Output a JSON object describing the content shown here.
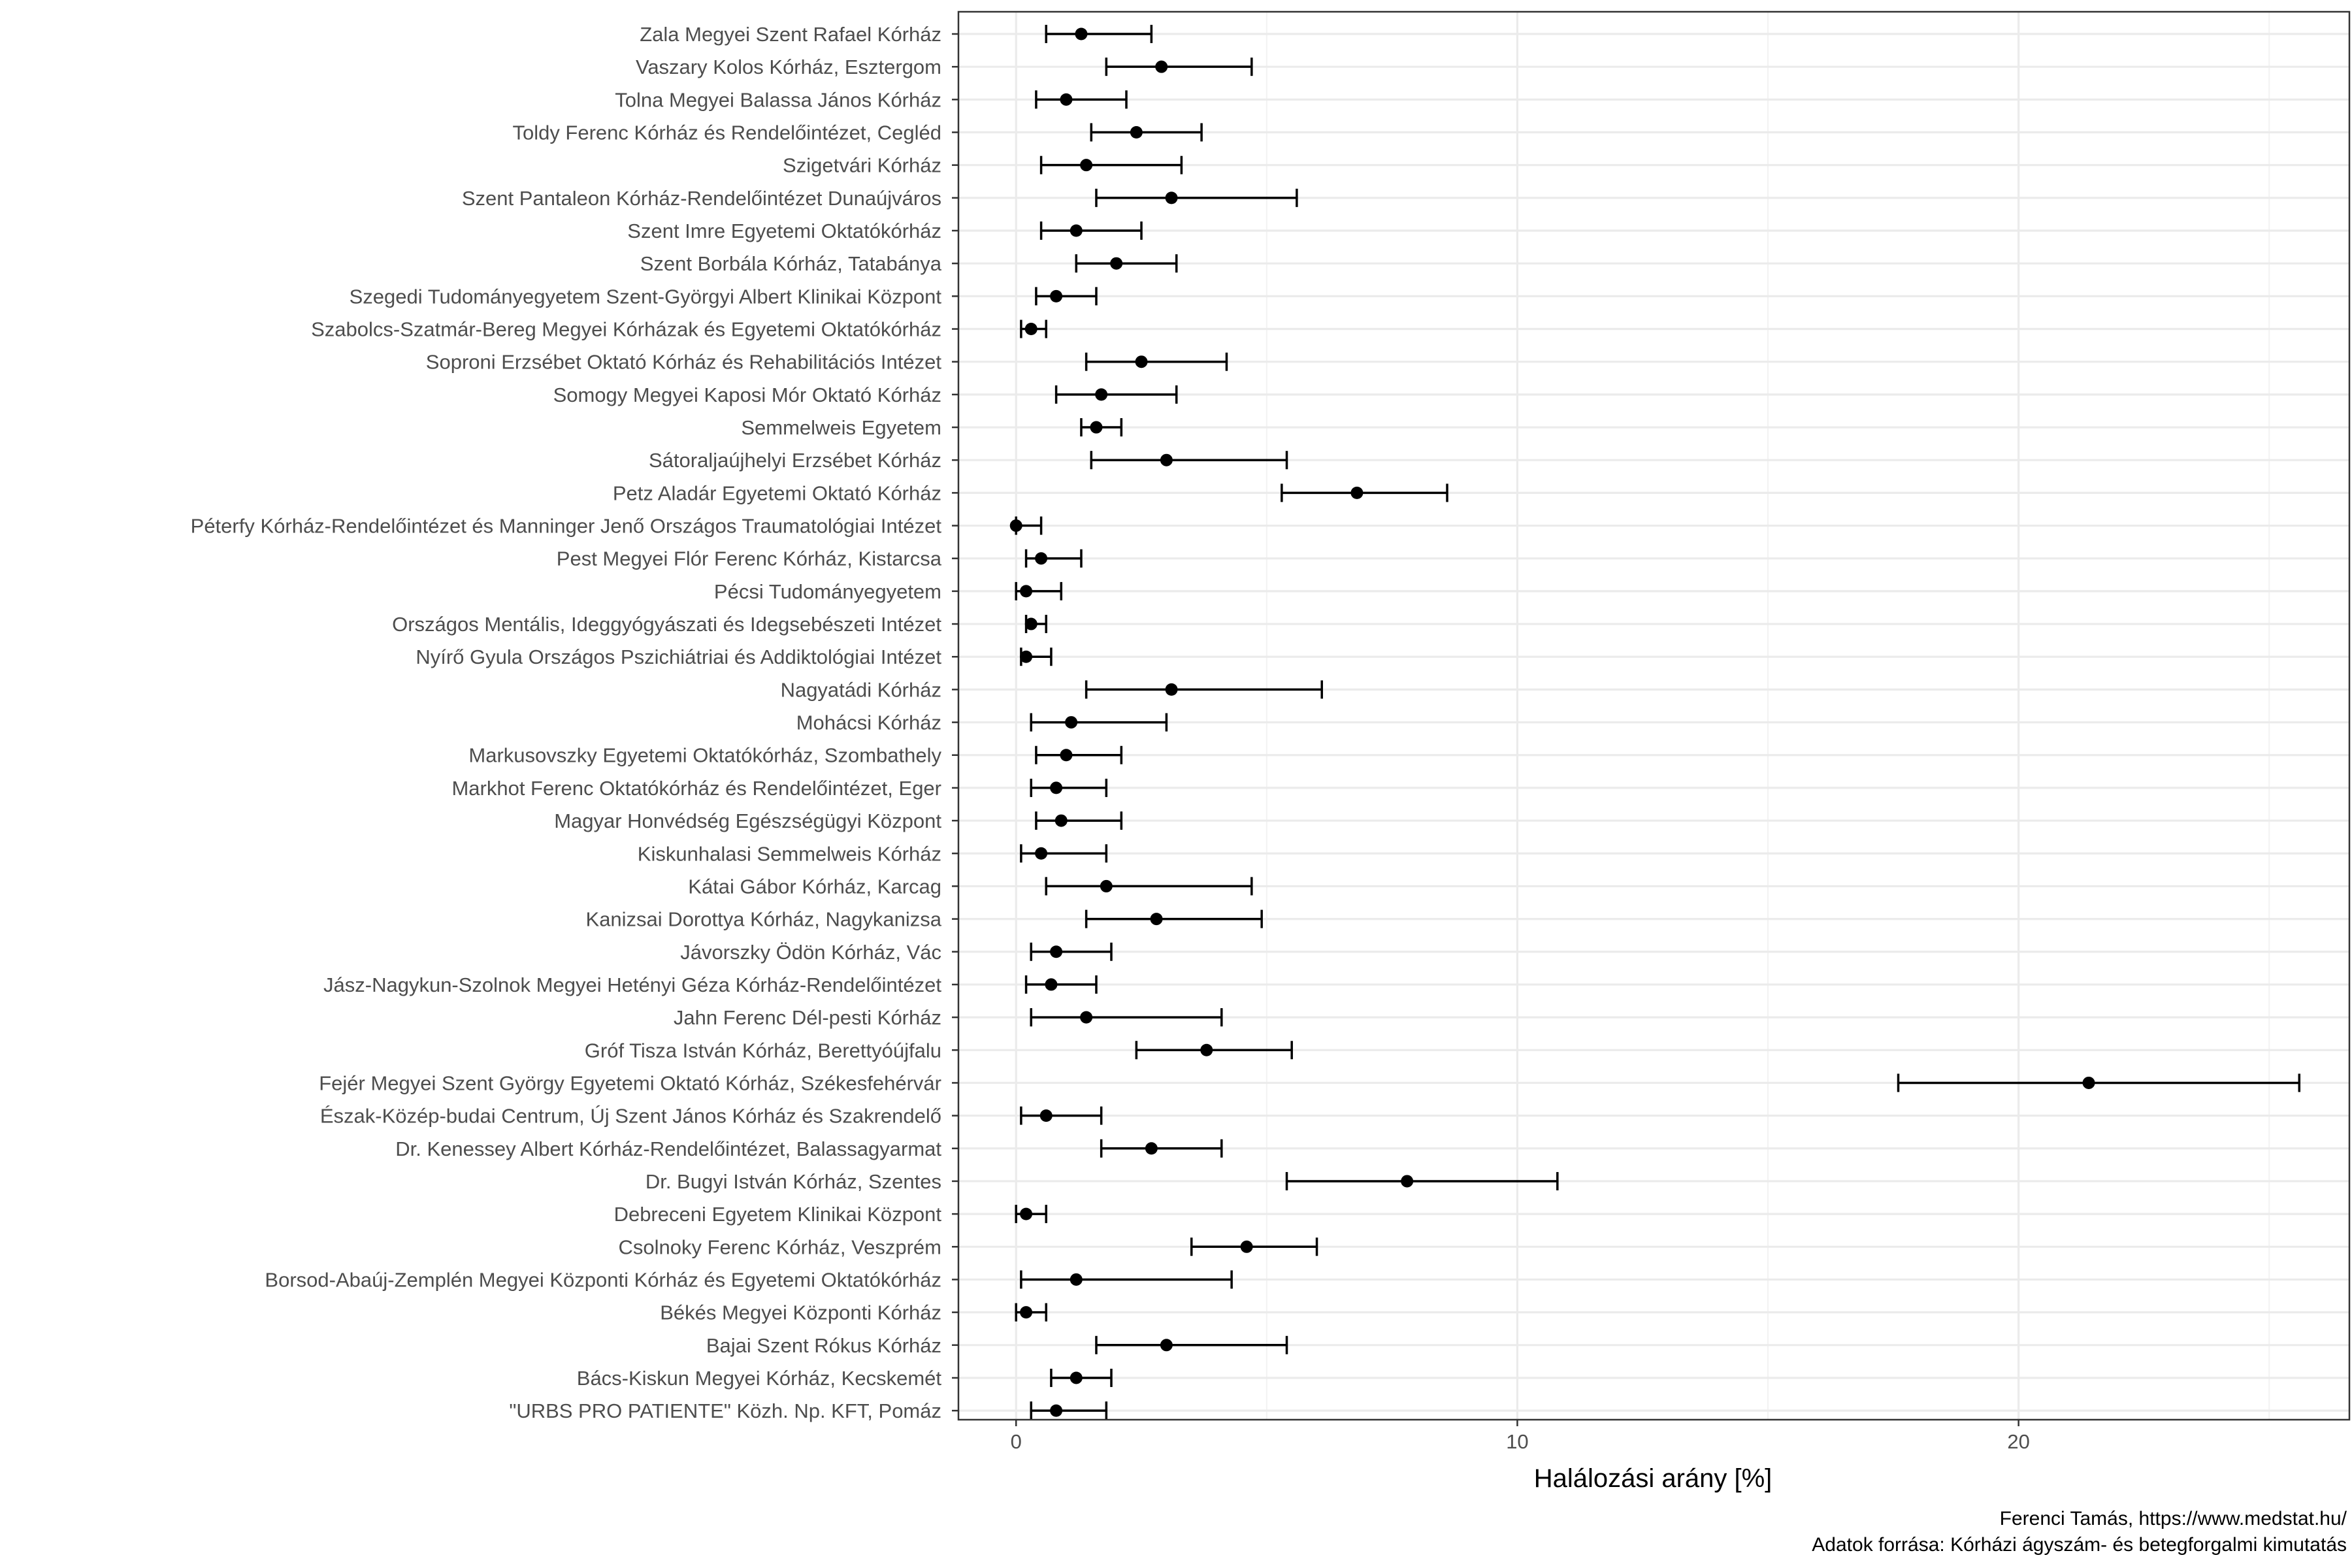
{
  "chart_data": {
    "type": "scatter",
    "title": "",
    "xlabel": "Halálozási arány [%]",
    "ylabel": "",
    "xlim": [
      -1.15,
      26.6
    ],
    "xticks": [
      0,
      10,
      20
    ],
    "x_tick_labels": [
      "0",
      "10",
      "20"
    ],
    "grid": true,
    "caption_lines": [
      "Ferenci Tamás, https://www.medstat.hu/",
      "Adatok forrása: Kórházi ágyszám- és betegforgalmi kimutatás"
    ],
    "categories": [
      "Zala Megyei Szent Rafael Kórház",
      "Vaszary Kolos Kórház, Esztergom",
      "Tolna Megyei Balassa János Kórház",
      "Toldy Ferenc Kórház és Rendelőintézet, Cegléd",
      "Szigetvári Kórház",
      "Szent Pantaleon Kórház-Rendelőintézet Dunaújváros",
      "Szent Imre Egyetemi Oktatókórház",
      "Szent Borbála Kórház, Tatabánya",
      "Szegedi Tudományegyetem Szent-Györgyi Albert Klinikai Központ",
      "Szabolcs-Szatmár-Bereg Megyei Kórházak és Egyetemi Oktatókórház",
      "Soproni Erzsébet Oktató Kórház és Rehabilitációs Intézet",
      "Somogy Megyei Kaposi Mór Oktató Kórház",
      "Semmelweis Egyetem",
      "Sátoraljaújhelyi Erzsébet Kórház",
      "Petz Aladár Egyetemi Oktató Kórház",
      "Péterfy Kórház-Rendelőintézet és Manninger Jenő Országos Traumatológiai Intézet",
      "Pest Megyei Flór Ferenc Kórház, Kistarcsa",
      "Pécsi Tudományegyetem",
      "Országos Mentális, Ideggyógyászati és Idegsebészeti Intézet",
      "Nyírő Gyula Országos Pszichiátriai és Addiktológiai Intézet",
      "Nagyatádi Kórház",
      "Mohácsi Kórház",
      "Markusovszky Egyetemi Oktatókórház, Szombathely",
      "Markhot Ferenc Oktatókórház és Rendelőintézet, Eger",
      "Magyar Honvédség Egészségügyi Központ",
      "Kiskunhalasi Semmelweis Kórház",
      "Kátai Gábor Kórház, Karcag",
      "Kanizsai Dorottya Kórház, Nagykanizsa",
      "Jávorszky Ödön Kórház, Vác",
      "Jász-Nagykun-Szolnok Megyei Hetényi Géza Kórház-Rendelőintézet",
      "Jahn Ferenc Dél-pesti Kórház",
      "Gróf Tisza István Kórház, Berettyóújfalu",
      "Fejér Megyei Szent György Egyetemi Oktató Kórház, Székesfehérvár",
      "Észak-Közép-budai Centrum, Új Szent János Kórház és Szakrendelő",
      "Dr. Kenessey Albert Kórház-Rendelőintézet, Balassagyarmat",
      "Dr. Bugyi István Kórház, Szentes",
      "Debreceni Egyetem Klinikai Központ",
      "Csolnoky Ferenc Kórház, Veszprém",
      "Borsod-Abaúj-Zemplén Megyei Központi Kórház és Egyetemi Oktatókórház",
      "Békés Megyei Központi Kórház",
      "Bajai Szent Rókus Kórház",
      "Bács-Kiskun Megyei Kórház, Kecskemét",
      "\"URBS PRO PATIENTE\" Közh. Np. KFT, Pomáz"
    ],
    "series": [
      {
        "estimate": [
          1.3,
          2.9,
          1.0,
          2.4,
          1.4,
          3.1,
          1.2,
          2.0,
          0.8,
          0.3,
          2.5,
          1.7,
          1.6,
          3.0,
          6.8,
          0.0,
          0.5,
          0.2,
          0.3,
          0.2,
          3.1,
          1.1,
          1.0,
          0.8,
          0.9,
          0.5,
          1.8,
          2.8,
          0.8,
          0.7,
          1.4,
          3.8,
          21.4,
          0.6,
          2.7,
          7.8,
          0.2,
          4.6,
          1.2,
          0.2,
          3.0,
          1.2,
          0.8
        ],
        "lower": [
          0.6,
          1.8,
          0.4,
          1.5,
          0.5,
          1.6,
          0.5,
          1.2,
          0.4,
          0.1,
          1.4,
          0.8,
          1.3,
          1.5,
          5.3,
          0.0,
          0.2,
          0.0,
          0.2,
          0.1,
          1.4,
          0.3,
          0.4,
          0.3,
          0.4,
          0.1,
          0.6,
          1.4,
          0.3,
          0.2,
          0.3,
          2.4,
          17.6,
          0.1,
          1.7,
          5.4,
          0.0,
          3.5,
          0.1,
          0.0,
          1.6,
          0.7,
          0.3
        ],
        "upper": [
          2.7,
          4.7,
          2.2,
          3.7,
          3.3,
          5.6,
          2.5,
          3.2,
          1.6,
          0.6,
          4.2,
          3.2,
          2.1,
          5.4,
          8.6,
          0.5,
          1.3,
          0.9,
          0.6,
          0.7,
          6.1,
          3.0,
          2.1,
          1.8,
          2.1,
          1.8,
          4.7,
          4.9,
          1.9,
          1.6,
          4.1,
          5.5,
          25.6,
          1.7,
          4.1,
          10.8,
          0.6,
          6.0,
          4.3,
          0.6,
          5.4,
          1.9,
          1.8
        ]
      }
    ]
  }
}
